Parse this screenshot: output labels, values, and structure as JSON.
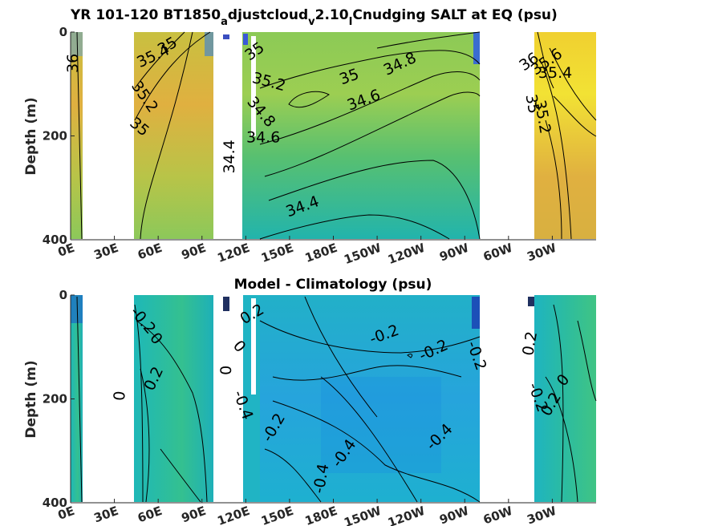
{
  "chart_data": [
    {
      "type": "heatmap",
      "title": "YR 101-120 BT1850_adjustcloud_v2.10_ICnudging SALT at EQ (psu)",
      "title_parts": [
        "YR 101-120 BT1850",
        "a",
        "djustcloud",
        "v",
        "2.10",
        "I",
        "Cnudging SALT at EQ (psu)"
      ],
      "ylabel": "Depth (m)",
      "ylim": [
        0,
        400
      ],
      "y_ticks": [
        "0",
        "200",
        "400"
      ],
      "y_tick_values": [
        0,
        200,
        400
      ],
      "x_ticks": [
        "0E",
        "30E",
        "60E",
        "90E",
        "120E",
        "150E",
        "180E",
        "150W",
        "120W",
        "90W",
        "60W",
        "30W"
      ],
      "x_tick_values": [
        0,
        30,
        60,
        90,
        120,
        150,
        180,
        210,
        240,
        270,
        300,
        330
      ],
      "xlim": [
        0,
        360
      ],
      "colors": {
        "high": "#f5e830",
        "mid_high": "#e8b43a",
        "mid": "#8ccc5a",
        "low": "#1eb0b4",
        "fresh": "#3a58d8"
      },
      "contour_labels": [
        {
          "text": "36",
          "lon": 5,
          "depth": 60,
          "angle": -90
        },
        {
          "text": "35.4",
          "lon": 58,
          "depth": 55,
          "angle": -25
        },
        {
          "text": "35",
          "lon": 68,
          "depth": 35,
          "angle": -30
        },
        {
          "text": "35.2",
          "lon": 48,
          "depth": 130,
          "angle": 55
        },
        {
          "text": "35",
          "lon": 45,
          "depth": 190,
          "angle": 40
        },
        {
          "text": "35",
          "lon": 128,
          "depth": 45,
          "angle": -35
        },
        {
          "text": "35.2",
          "lon": 135,
          "depth": 105,
          "angle": 15
        },
        {
          "text": "35",
          "lon": 192,
          "depth": 95,
          "angle": -20
        },
        {
          "text": "34.8",
          "lon": 227,
          "depth": 70,
          "angle": -25
        },
        {
          "text": "34.6",
          "lon": 202,
          "depth": 140,
          "angle": -20
        },
        {
          "text": "34.8",
          "lon": 128,
          "depth": 160,
          "angle": 50
        },
        {
          "text": "34.6",
          "lon": 132,
          "depth": 212,
          "angle": 0
        },
        {
          "text": "34.4",
          "lon": 112,
          "depth": 240,
          "angle": -90
        },
        {
          "text": "34.4",
          "lon": 160,
          "depth": 345,
          "angle": -20
        },
        {
          "text": "36",
          "lon": 316,
          "depth": 65,
          "angle": -35
        },
        {
          "text": "35.6",
          "lon": 328,
          "depth": 65,
          "angle": -35
        },
        {
          "text": "35.4",
          "lon": 332,
          "depth": 88,
          "angle": 0
        },
        {
          "text": "35",
          "lon": 313,
          "depth": 140,
          "angle": 80
        },
        {
          "text": "35.2",
          "lon": 320,
          "depth": 165,
          "angle": 80
        }
      ]
    },
    {
      "type": "heatmap",
      "title": "Model - Climatology (psu)",
      "ylabel": "Depth (m)",
      "ylim": [
        0,
        400
      ],
      "y_ticks": [
        "0",
        "200",
        "400"
      ],
      "y_tick_values": [
        0,
        200,
        400
      ],
      "x_ticks": [
        "0E",
        "30E",
        "60E",
        "90E",
        "120E",
        "150E",
        "180E",
        "150W",
        "120W",
        "90W",
        "60W",
        "30W"
      ],
      "x_tick_values": [
        0,
        30,
        60,
        90,
        120,
        150,
        180,
        210,
        240,
        270,
        300,
        330
      ],
      "xlim": [
        0,
        360
      ],
      "colors": {
        "pos": "#3cc48c",
        "zero": "#1eb4b8",
        "neg": "#26a8dc",
        "strong_neg": "#1a78c8"
      },
      "contour_labels": [
        {
          "text": "-0.2",
          "lon": 47,
          "depth": 55,
          "angle": 50
        },
        {
          "text": "0",
          "lon": 56,
          "depth": 90,
          "angle": 50
        },
        {
          "text": "0.2",
          "lon": 60,
          "depth": 165,
          "angle": -65
        },
        {
          "text": "0",
          "lon": 37,
          "depth": 195,
          "angle": -85
        },
        {
          "text": "0",
          "lon": 113,
          "depth": 105,
          "angle": 50
        },
        {
          "text": "0",
          "lon": 110,
          "depth": 145,
          "angle": -90
        },
        {
          "text": "0.2",
          "lon": 126,
          "depth": 45,
          "angle": -30
        },
        {
          "text": "-0.2",
          "lon": 216,
          "depth": 85,
          "angle": -20
        },
        {
          "text": "-0.2",
          "lon": 250,
          "depth": 115,
          "angle": -25
        },
        {
          "text": "-0.2",
          "lon": 275,
          "depth": 120,
          "angle": 70
        },
        {
          "text": "-0.4",
          "lon": 115,
          "depth": 215,
          "angle": 70
        },
        {
          "text": "-0.2",
          "lon": 142,
          "depth": 260,
          "angle": -60
        },
        {
          "text": "-0.4",
          "lon": 190,
          "depth": 310,
          "angle": -55
        },
        {
          "text": "-0.4",
          "lon": 255,
          "depth": 280,
          "angle": -45
        },
        {
          "text": "-0.4",
          "lon": 175,
          "depth": 355,
          "angle": -80
        },
        {
          "text": "0.2",
          "lon": 318,
          "depth": 95,
          "angle": -80
        },
        {
          "text": "-0.2",
          "lon": 317,
          "depth": 200,
          "angle": 70
        },
        {
          "text": "0",
          "lon": 340,
          "depth": 170,
          "angle": -50
        },
        {
          "text": "0.2",
          "lon": 332,
          "depth": 215,
          "angle": -60
        }
      ]
    }
  ]
}
